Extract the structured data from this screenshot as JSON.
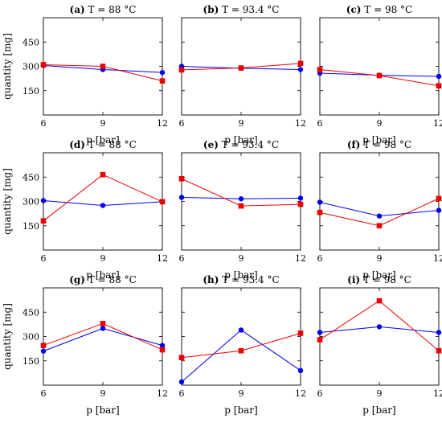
{
  "colors": {
    "blue_series": "#0000ee",
    "red_series": "#ee0000",
    "axis": "#000000"
  },
  "chart_data": [
    {
      "panel": "(a)",
      "title": "T = 88 °C",
      "type": "line",
      "x": [
        6,
        9,
        12
      ],
      "xlabel": "p [bar]",
      "ylabel": "quantity [mg]",
      "xticks": [
        "6",
        "9",
        "12"
      ],
      "yticks": [
        "150",
        "300",
        "450"
      ],
      "xlim": [
        6,
        12
      ],
      "ylim": [
        0,
        600
      ],
      "series": [
        {
          "values": [
            305,
            280,
            262
          ],
          "color": "blue",
          "marker": "circle"
        },
        {
          "values": [
            310,
            300,
            210
          ],
          "color": "red",
          "marker": "square"
        }
      ]
    },
    {
      "panel": "(b)",
      "title": "T = 93.4 °C",
      "type": "line",
      "x": [
        6,
        9,
        12
      ],
      "xlabel": "p [bar]",
      "ylabel": "",
      "xticks": [
        "6",
        "9",
        "12"
      ],
      "yticks": [],
      "xlim": [
        6,
        12
      ],
      "ylim": [
        0,
        600
      ],
      "series": [
        {
          "values": [
            300,
            288,
            280
          ],
          "color": "blue",
          "marker": "circle"
        },
        {
          "values": [
            278,
            290,
            318
          ],
          "color": "red",
          "marker": "square"
        }
      ]
    },
    {
      "panel": "(c)",
      "title": "T = 98 °C",
      "type": "line",
      "x": [
        6,
        9,
        12
      ],
      "xlabel": "p [bar]",
      "ylabel": "",
      "xticks": [
        "6",
        "9",
        "12"
      ],
      "yticks": [],
      "xlim": [
        6,
        12
      ],
      "ylim": [
        0,
        600
      ],
      "series": [
        {
          "values": [
            258,
            245,
            238
          ],
          "color": "blue",
          "marker": "circle"
        },
        {
          "values": [
            280,
            243,
            180
          ],
          "color": "red",
          "marker": "square"
        }
      ]
    },
    {
      "panel": "(d)",
      "title": "T = 88 °C",
      "type": "line",
      "x": [
        6,
        9,
        12
      ],
      "xlabel": "p [bar]",
      "ylabel": "quantity [mg]",
      "xticks": [
        "6",
        "9",
        "12"
      ],
      "yticks": [
        "150",
        "300",
        "450"
      ],
      "xlim": [
        6,
        12
      ],
      "ylim": [
        0,
        600
      ],
      "series": [
        {
          "values": [
            305,
            275,
            298
          ],
          "color": "blue",
          "marker": "circle"
        },
        {
          "values": [
            180,
            465,
            298
          ],
          "color": "red",
          "marker": "square"
        }
      ]
    },
    {
      "panel": "(e)",
      "title": "T = 93.4 °C",
      "type": "line",
      "x": [
        6,
        9,
        12
      ],
      "xlabel": "p [bar]",
      "ylabel": "",
      "xticks": [
        "6",
        "9",
        "12"
      ],
      "yticks": [],
      "xlim": [
        6,
        12
      ],
      "ylim": [
        0,
        600
      ],
      "series": [
        {
          "values": [
            325,
            316,
            320
          ],
          "color": "blue",
          "marker": "circle"
        },
        {
          "values": [
            440,
            272,
            282
          ],
          "color": "red",
          "marker": "square"
        }
      ]
    },
    {
      "panel": "(f)",
      "title": "T = 98 °C",
      "type": "line",
      "x": [
        6,
        9,
        12
      ],
      "xlabel": "p [bar]",
      "ylabel": "",
      "xticks": [
        "6",
        "9",
        "12"
      ],
      "yticks": [],
      "xlim": [
        6,
        12
      ],
      "ylim": [
        0,
        600
      ],
      "series": [
        {
          "values": [
            295,
            210,
            245
          ],
          "color": "blue",
          "marker": "circle"
        },
        {
          "values": [
            232,
            150,
            318
          ],
          "color": "red",
          "marker": "square"
        }
      ]
    },
    {
      "panel": "(g)",
      "title": "T = 88 °C",
      "type": "line",
      "x": [
        6,
        9,
        12
      ],
      "xlabel": "p [bar]",
      "ylabel": "quantity [mg]",
      "xticks": [
        "6",
        "9",
        "12"
      ],
      "yticks": [
        "150",
        "300",
        "450"
      ],
      "xlim": [
        6,
        12
      ],
      "ylim": [
        0,
        600
      ],
      "series": [
        {
          "values": [
            210,
            350,
            245
          ],
          "color": "blue",
          "marker": "circle"
        },
        {
          "values": [
            245,
            380,
            218
          ],
          "color": "red",
          "marker": "square"
        }
      ]
    },
    {
      "panel": "(h)",
      "title": "T = 93.4 °C",
      "type": "line",
      "x": [
        6,
        9,
        12
      ],
      "xlabel": "p [bar]",
      "ylabel": "",
      "xticks": [
        "6",
        "9",
        "12"
      ],
      "yticks": [],
      "xlim": [
        6,
        12
      ],
      "ylim": [
        0,
        600
      ],
      "series": [
        {
          "values": [
            20,
            340,
            90
          ],
          "color": "blue",
          "marker": "circle"
        },
        {
          "values": [
            170,
            212,
            320
          ],
          "color": "red",
          "marker": "square"
        }
      ]
    },
    {
      "panel": "(i)",
      "title": "T = 98 °C",
      "type": "line",
      "x": [
        6,
        9,
        12
      ],
      "xlabel": "p [bar]",
      "ylabel": "",
      "xticks": [
        "6",
        "9",
        "12"
      ],
      "yticks": [],
      "xlim": [
        6,
        12
      ],
      "ylim": [
        0,
        600
      ],
      "series": [
        {
          "values": [
            325,
            360,
            325
          ],
          "color": "blue",
          "marker": "circle"
        },
        {
          "values": [
            280,
            520,
            212
          ],
          "color": "red",
          "marker": "square"
        }
      ]
    }
  ]
}
